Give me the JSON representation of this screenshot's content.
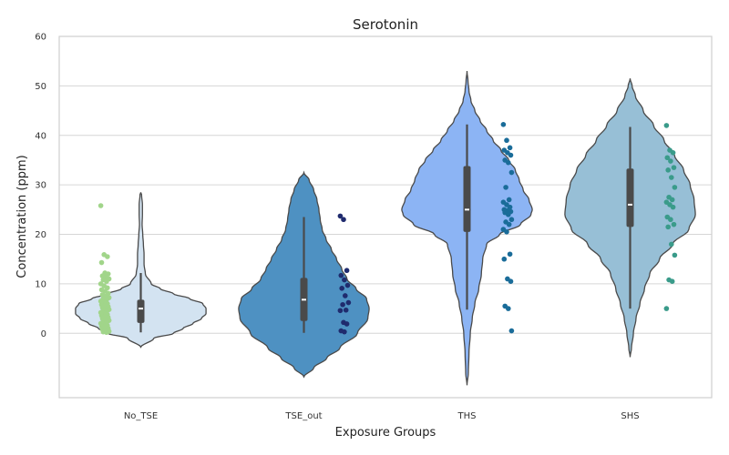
{
  "chart_data": {
    "type": "violin",
    "title": "Serotonin",
    "xlabel": "Exposure Groups",
    "ylabel": "Concentration (ppm)",
    "ylim": [
      -13,
      60
    ],
    "yticks": [
      0,
      10,
      20,
      30,
      40,
      50,
      60
    ],
    "grid": "horizontal",
    "categories": [
      "No_TSE",
      "TSE_out",
      "THS",
      "SHS"
    ],
    "colors": {
      "violin_fill": [
        "#d3e3f1",
        "#4e91c2",
        "#8cb4f4",
        "#97bfd6"
      ],
      "point_fill": [
        "#a1d58a",
        "#1f2b6e",
        "#1a6c99",
        "#3a9b8a"
      ],
      "outline": "#4a4a4a",
      "grid": "#d6d6d6",
      "box": "#4a4a4a",
      "median": "#ffffff"
    },
    "groups": [
      {
        "name": "No_TSE",
        "box": {
          "q1": 2.1,
          "median": 5.0,
          "q3": 6.8,
          "whisker_low": 0.2,
          "whisker_high": 12.2
        },
        "density": [
          [
            -2.8,
            0.0
          ],
          [
            -1,
            0.2
          ],
          [
            0,
            0.5
          ],
          [
            1,
            0.65
          ],
          [
            2,
            0.8
          ],
          [
            3,
            0.93
          ],
          [
            4,
            1.0
          ],
          [
            5,
            1.0
          ],
          [
            6,
            0.95
          ],
          [
            7,
            0.75
          ],
          [
            8,
            0.5
          ],
          [
            9,
            0.3
          ],
          [
            10,
            0.16
          ],
          [
            12,
            0.07
          ],
          [
            14,
            0.05
          ],
          [
            16,
            0.05
          ],
          [
            18,
            0.04
          ],
          [
            20,
            0.03
          ],
          [
            22,
            0.02
          ],
          [
            24,
            0.025
          ],
          [
            26,
            0.025
          ],
          [
            28,
            0.012
          ],
          [
            28.5,
            0.0
          ]
        ],
        "points": [
          25.8,
          15.9,
          15.5,
          14.3,
          12.2,
          12.0,
          11.6,
          11.3,
          11.0,
          10.8,
          10.5,
          10.0,
          9.6,
          9.2,
          8.8,
          8.5,
          8.1,
          7.8,
          7.5,
          7.2,
          7.0,
          6.8,
          6.5,
          6.3,
          6.0,
          5.8,
          5.6,
          5.4,
          5.2,
          5.0,
          4.8,
          4.6,
          4.4,
          4.2,
          4.0,
          3.8,
          3.6,
          3.4,
          3.2,
          3.0,
          2.8,
          2.6,
          2.4,
          2.2,
          2.0,
          1.8,
          1.6,
          1.4,
          1.2,
          1.0,
          0.8,
          0.6,
          0.4,
          0.3,
          0.2
        ]
      },
      {
        "name": "TSE_out",
        "box": {
          "q1": 2.5,
          "median": 6.8,
          "q3": 11.2,
          "whisker_low": 0.1,
          "whisker_high": 23.5
        },
        "density": [
          [
            -8.8,
            0.0
          ],
          [
            -7,
            0.15
          ],
          [
            -5,
            0.35
          ],
          [
            -3,
            0.55
          ],
          [
            0,
            0.82
          ],
          [
            3,
            0.98
          ],
          [
            5,
            1.0
          ],
          [
            7,
            0.96
          ],
          [
            9,
            0.8
          ],
          [
            11,
            0.66
          ],
          [
            13,
            0.58
          ],
          [
            15,
            0.5
          ],
          [
            17,
            0.42
          ],
          [
            19,
            0.34
          ],
          [
            21,
            0.28
          ],
          [
            23,
            0.25
          ],
          [
            25,
            0.23
          ],
          [
            27,
            0.2
          ],
          [
            29,
            0.15
          ],
          [
            31,
            0.08
          ],
          [
            32.5,
            0.0
          ]
        ],
        "points": [
          23.7,
          23.0,
          12.7,
          11.7,
          10.8,
          9.7,
          9.1,
          7.6,
          6.2,
          5.8,
          4.7,
          4.6,
          2.2,
          1.9,
          0.5,
          0.3
        ]
      },
      {
        "name": "THS",
        "box": {
          "q1": 20.5,
          "median": 25.0,
          "q3": 33.8,
          "whisker_low": 4.8,
          "whisker_high": 42.2
        },
        "density": [
          [
            -10.5,
            0.0
          ],
          [
            -8,
            0.02
          ],
          [
            -4,
            0.03
          ],
          [
            0,
            0.05
          ],
          [
            3,
            0.08
          ],
          [
            6,
            0.12
          ],
          [
            9,
            0.18
          ],
          [
            12,
            0.22
          ],
          [
            15,
            0.24
          ],
          [
            18,
            0.3
          ],
          [
            20,
            0.5
          ],
          [
            22,
            0.82
          ],
          [
            24,
            0.98
          ],
          [
            25,
            1.0
          ],
          [
            27,
            0.95
          ],
          [
            29,
            0.86
          ],
          [
            31,
            0.8
          ],
          [
            33,
            0.74
          ],
          [
            35,
            0.64
          ],
          [
            37,
            0.52
          ],
          [
            39,
            0.4
          ],
          [
            41,
            0.3
          ],
          [
            43,
            0.2
          ],
          [
            45,
            0.12
          ],
          [
            47,
            0.06
          ],
          [
            49,
            0.03
          ],
          [
            51,
            0.015
          ],
          [
            53,
            0.0
          ]
        ],
        "points": [
          42.2,
          39.0,
          37.5,
          37.0,
          36.5,
          36.0,
          35.0,
          34.5,
          32.5,
          29.5,
          27.0,
          26.5,
          26.0,
          25.5,
          25.0,
          24.8,
          24.6,
          24.4,
          24.0,
          23.0,
          22.5,
          22.0,
          21.0,
          20.5,
          16.0,
          15.0,
          11.0,
          10.5,
          5.5,
          5.0,
          0.5
        ]
      },
      {
        "name": "SHS",
        "box": {
          "q1": 21.5,
          "median": 26.0,
          "q3": 33.3,
          "whisker_low": 5.0,
          "whisker_high": 41.7
        },
        "density": [
          [
            -4.8,
            0.0
          ],
          [
            -3,
            0.02
          ],
          [
            0,
            0.05
          ],
          [
            3,
            0.09
          ],
          [
            6,
            0.15
          ],
          [
            9,
            0.22
          ],
          [
            12,
            0.3
          ],
          [
            15,
            0.45
          ],
          [
            18,
            0.65
          ],
          [
            21,
            0.9
          ],
          [
            24,
            1.0
          ],
          [
            27,
            0.98
          ],
          [
            30,
            0.92
          ],
          [
            33,
            0.82
          ],
          [
            36,
            0.68
          ],
          [
            39,
            0.52
          ],
          [
            42,
            0.36
          ],
          [
            45,
            0.2
          ],
          [
            48,
            0.08
          ],
          [
            50,
            0.03
          ],
          [
            51.5,
            0.0
          ]
        ],
        "points": [
          42.0,
          37.0,
          36.5,
          35.5,
          34.8,
          33.5,
          33.0,
          31.5,
          29.5,
          27.5,
          27.0,
          26.5,
          26.0,
          25.5,
          23.5,
          23.0,
          22.0,
          21.5,
          18.0,
          15.8,
          10.8,
          10.5,
          5.0
        ]
      }
    ]
  }
}
